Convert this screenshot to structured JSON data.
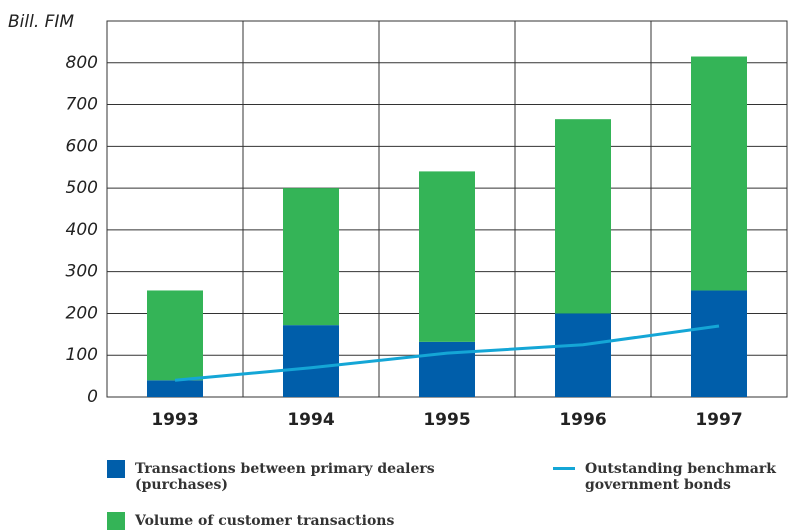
{
  "chart_data": {
    "type": "bar",
    "stacked": true,
    "ylabel": "Bill. FIM",
    "categories": [
      "1993",
      "1994",
      "1995",
      "1996",
      "1997"
    ],
    "series": [
      {
        "name": "Transactions between primary dealers (purchases)",
        "type": "bar",
        "color": "#005eaa",
        "values": [
          40,
          172,
          132,
          200,
          255
        ]
      },
      {
        "name": "Volume of customer transactions",
        "type": "bar",
        "color": "#34b457",
        "values": [
          215,
          328,
          408,
          465,
          560
        ]
      },
      {
        "name": "Outstanding benchmark government bonds",
        "type": "line",
        "color": "#14a6d6",
        "values": [
          40,
          70,
          105,
          125,
          170
        ]
      }
    ],
    "ylim": [
      0,
      900
    ],
    "yticks": [
      0,
      100,
      200,
      300,
      400,
      500,
      600,
      700,
      800
    ],
    "grid": true
  }
}
